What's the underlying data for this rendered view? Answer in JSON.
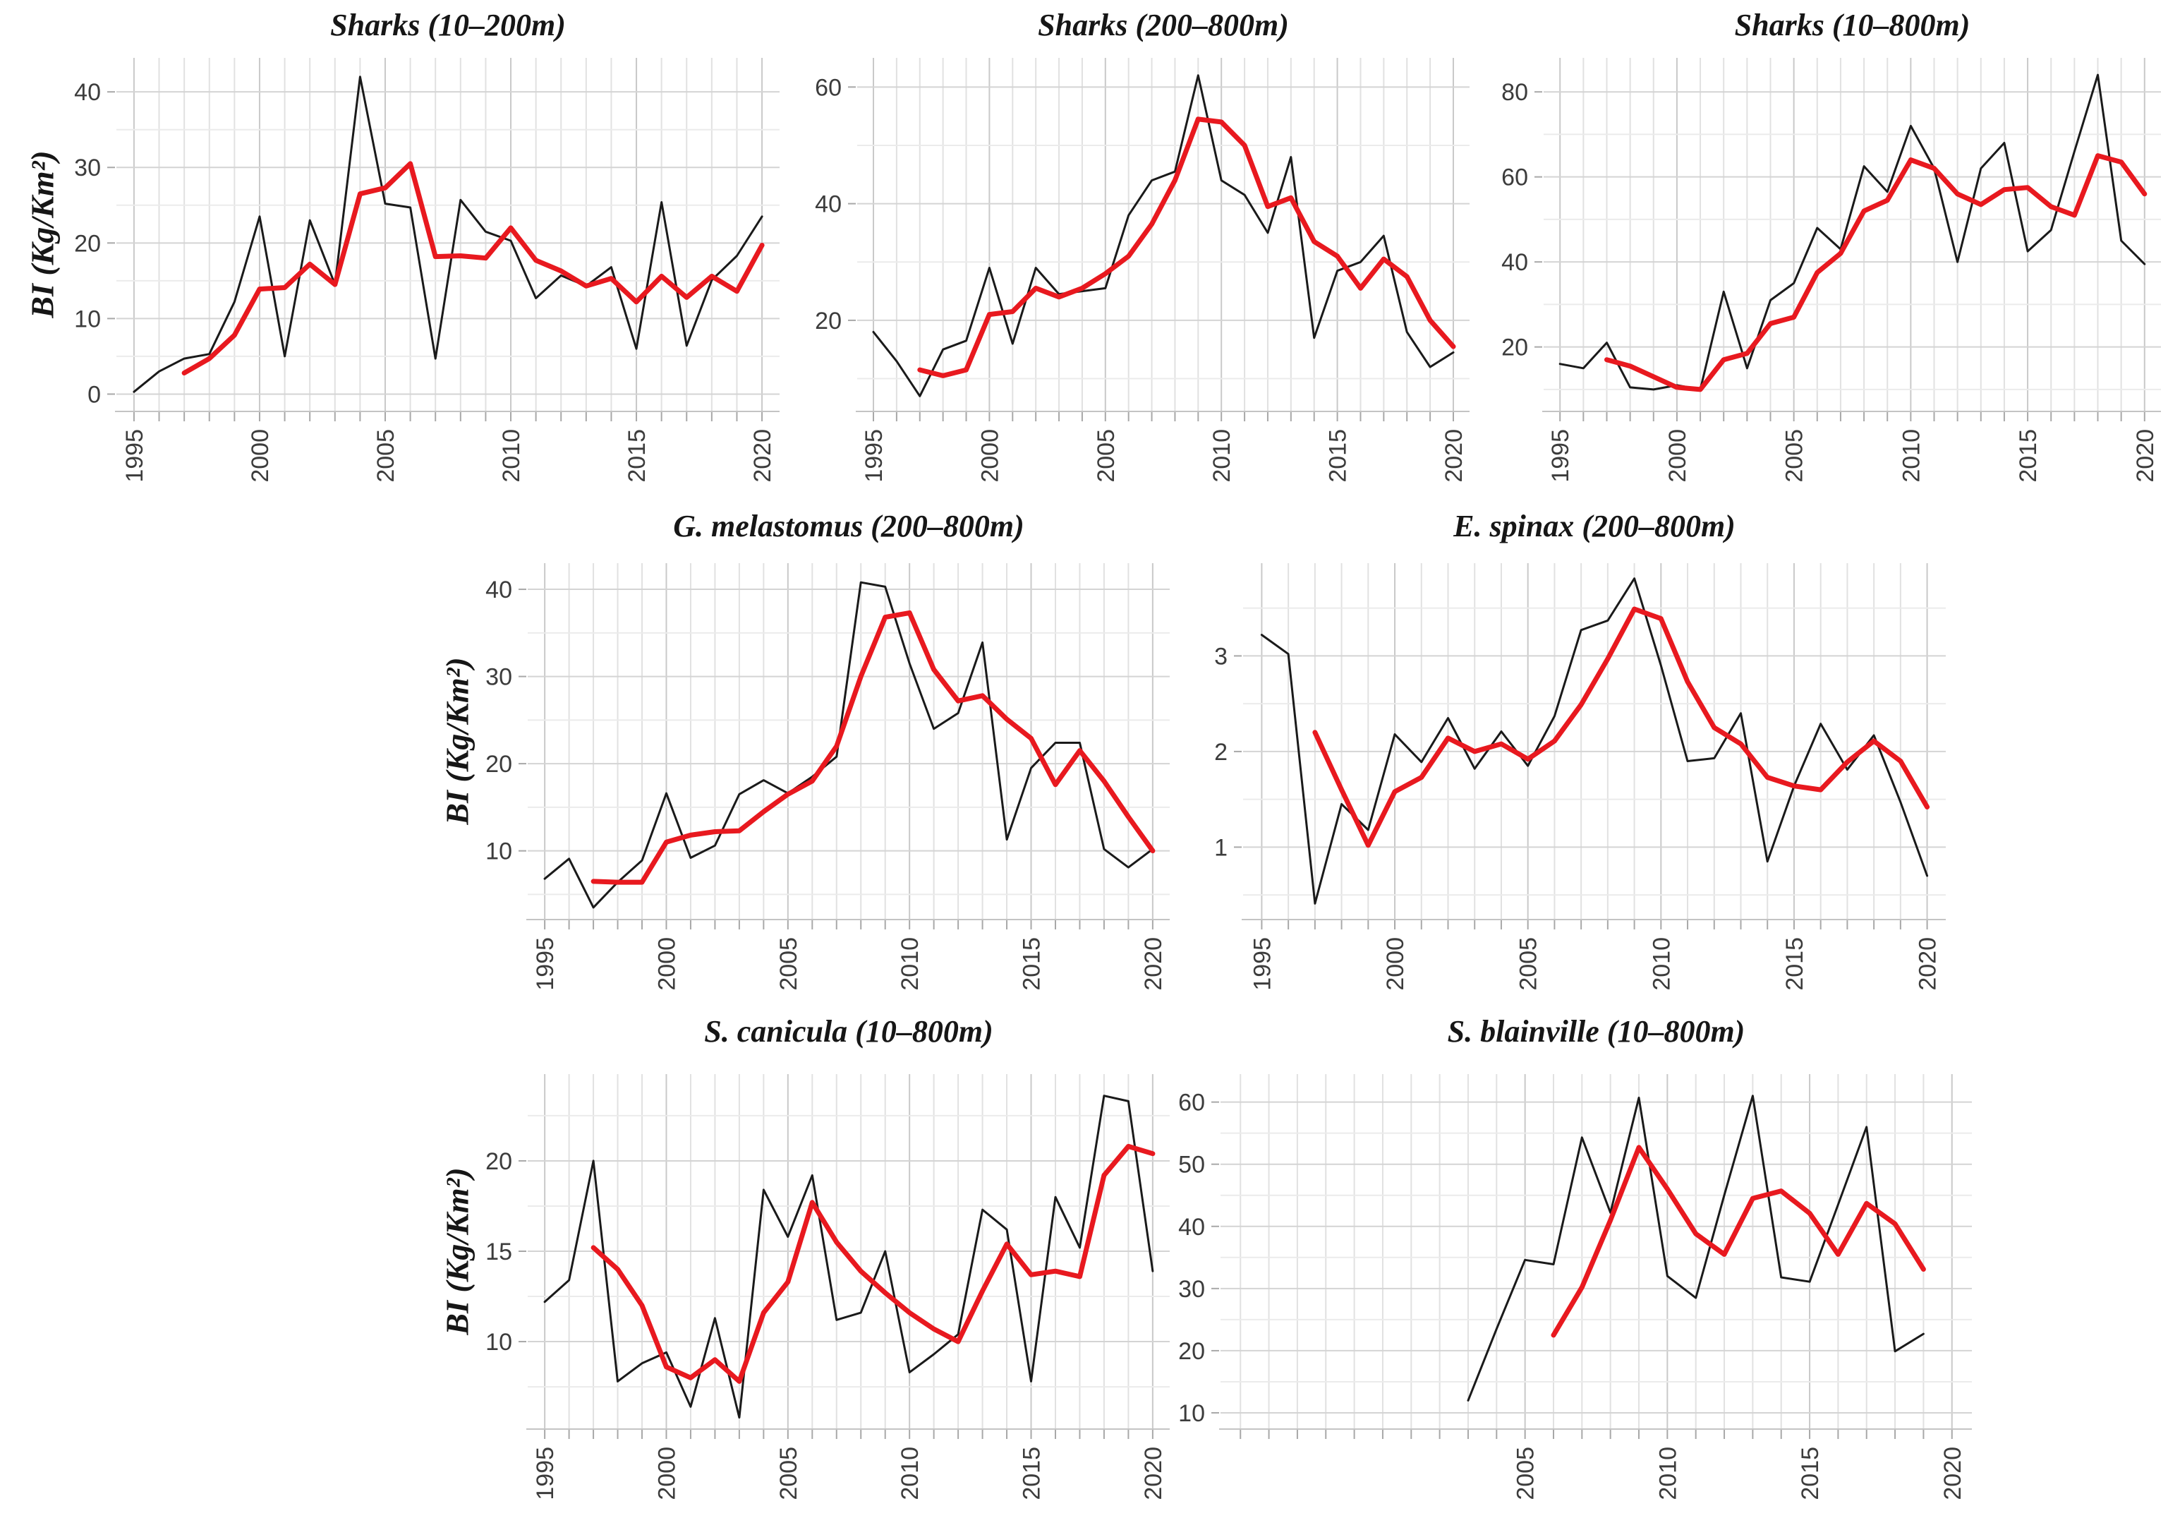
{
  "figure": {
    "background": "#ffffff",
    "ylabel": "BI (Kg/Km²)",
    "black_color": "#1a1a1a",
    "red_color": "#e8191f"
  },
  "chart_data": [
    {
      "type": "line",
      "title": "Sharks (10–200m)",
      "xlabel": "",
      "ylabel": "BI (Kg/Km²)",
      "x_ticks": [
        1995,
        2000,
        2005,
        2010,
        2015,
        2020
      ],
      "y_ticks": [
        0,
        10,
        20,
        30,
        40
      ],
      "y_minor": [
        5,
        15,
        25,
        35
      ],
      "xlim": [
        1994.3,
        2020.7
      ],
      "ylim": [
        -2.2,
        44.5
      ],
      "grid": true,
      "legend": "none",
      "series": [
        {
          "name": "annual-biomass-index",
          "color": "#1a1a1a",
          "width": 3,
          "start_year": 1995,
          "values": [
            0.3,
            3.0,
            4.7,
            5.3,
            12.2,
            23.5,
            5.0,
            23.0,
            14.5,
            42.0,
            25.2,
            24.7,
            4.7,
            25.7,
            21.5,
            20.3,
            12.7,
            15.7,
            14.3,
            16.8,
            6.0,
            25.4,
            6.4,
            15.1,
            18.3,
            23.5
          ]
        },
        {
          "name": "smoothed-trend",
          "color": "#e8191f",
          "width": 7,
          "start_year": 1997,
          "values": [
            2.8,
            4.7,
            7.8,
            13.9,
            14.1,
            17.2,
            14.5,
            26.5,
            27.3,
            30.5,
            18.2,
            18.3,
            18.0,
            22.0,
            17.7,
            16.3,
            14.3,
            15.3,
            12.2,
            15.6,
            12.8,
            15.6,
            13.6,
            19.7
          ]
        }
      ]
    },
    {
      "type": "line",
      "title": "Sharks (200–800m)",
      "xlabel": "",
      "ylabel": "BI (Kg/Km²)",
      "x_ticks": [
        1995,
        2000,
        2005,
        2010,
        2015,
        2020
      ],
      "y_ticks": [
        20,
        40,
        60
      ],
      "y_minor": [
        10,
        30,
        50
      ],
      "xlim": [
        1994.3,
        2020.7
      ],
      "ylim": [
        4.5,
        65
      ],
      "grid": true,
      "legend": "none",
      "series": [
        {
          "name": "annual-biomass-index",
          "color": "#1a1a1a",
          "width": 3,
          "start_year": 1995,
          "values": [
            18,
            13,
            7,
            15,
            16.5,
            29,
            16,
            29,
            24.5,
            25,
            25.5,
            38,
            44,
            45.5,
            62,
            44,
            41.5,
            35,
            48,
            17,
            28.5,
            30,
            34.5,
            18,
            12,
            14.5
          ]
        },
        {
          "name": "smoothed-trend",
          "color": "#e8191f",
          "width": 7,
          "start_year": 1997,
          "values": [
            11.5,
            10.5,
            11.5,
            21,
            21.5,
            25.5,
            24,
            25.5,
            28,
            31,
            36.5,
            44,
            54.5,
            54,
            50,
            39.5,
            41,
            33.5,
            31,
            25.5,
            30.5,
            27.5,
            20,
            15.5
          ]
        }
      ]
    },
    {
      "type": "line",
      "title": "Sharks (10–800m)",
      "xlabel": "",
      "ylabel": "BI (Kg/Km²)",
      "x_ticks": [
        1995,
        2000,
        2005,
        2010,
        2015,
        2020
      ],
      "y_ticks": [
        20,
        40,
        60,
        80
      ],
      "y_minor": [
        10,
        30,
        50,
        70
      ],
      "xlim": [
        1994.3,
        2020.7
      ],
      "ylim": [
        5,
        88
      ],
      "grid": true,
      "legend": "none",
      "series": [
        {
          "name": "annual-biomass-index",
          "color": "#1a1a1a",
          "width": 3,
          "start_year": 1995,
          "values": [
            16,
            15,
            21,
            10.5,
            10,
            11,
            10,
            33,
            15,
            31,
            35,
            48,
            43,
            62.5,
            56.5,
            72,
            62,
            40,
            62,
            68,
            42.5,
            47.5,
            66,
            84,
            45,
            39.5
          ]
        },
        {
          "name": "smoothed-trend",
          "color": "#e8191f",
          "width": 7,
          "start_year": 1997,
          "values": [
            17,
            15.5,
            13,
            10.5,
            10,
            17,
            18.5,
            25.5,
            27,
            37.5,
            42,
            52,
            54.5,
            64,
            62,
            56,
            53.5,
            57,
            57.5,
            53,
            51,
            65,
            63.5,
            56
          ]
        }
      ]
    },
    {
      "type": "line",
      "title": "G. melastomus (200–800m)",
      "xlabel": "",
      "ylabel": "BI (Kg/Km²)",
      "x_ticks": [
        1995,
        2000,
        2005,
        2010,
        2015,
        2020
      ],
      "y_ticks": [
        10,
        20,
        30,
        40
      ],
      "y_minor": [
        5,
        15,
        25,
        35
      ],
      "xlim": [
        1994.3,
        2020.7
      ],
      "ylim": [
        2.2,
        43
      ],
      "grid": true,
      "legend": "none",
      "series": [
        {
          "name": "annual-biomass-index",
          "color": "#1a1a1a",
          "width": 3,
          "start_year": 1995,
          "values": [
            6.8,
            9.1,
            3.5,
            6.4,
            8.9,
            16.6,
            9.2,
            10.6,
            16.5,
            18.1,
            16.6,
            18.5,
            20.8,
            40.8,
            40.3,
            31.5,
            24.0,
            25.8,
            33.9,
            11.3,
            19.5,
            22.4,
            22.4,
            10.2,
            8.1,
            10.2
          ]
        },
        {
          "name": "smoothed-trend",
          "color": "#e8191f",
          "width": 7,
          "start_year": 1997,
          "values": [
            6.5,
            6.4,
            6.4,
            11.0,
            11.8,
            12.2,
            12.3,
            14.5,
            16.5,
            18.0,
            22.0,
            30.0,
            36.8,
            37.3,
            30.8,
            27.2,
            27.8,
            25.1,
            22.9,
            17.6,
            21.5,
            18.0,
            13.9,
            10.0
          ]
        }
      ]
    },
    {
      "type": "line",
      "title": "E. spinax (200–800m)",
      "xlabel": "",
      "ylabel": "BI (Kg/Km²)",
      "x_ticks": [
        1995,
        2000,
        2005,
        2010,
        2015,
        2020
      ],
      "y_ticks": [
        1,
        2,
        3
      ],
      "y_minor": [
        0.5,
        1.5,
        2.5,
        3.5
      ],
      "xlim": [
        1994.3,
        2020.7
      ],
      "ylim": [
        0.25,
        3.97
      ],
      "grid": true,
      "legend": "none",
      "series": [
        {
          "name": "annual-biomass-index",
          "color": "#1a1a1a",
          "width": 3,
          "start_year": 1995,
          "values": [
            3.22,
            3.02,
            0.41,
            1.45,
            1.18,
            2.18,
            1.89,
            2.35,
            1.82,
            2.21,
            1.85,
            2.37,
            3.27,
            3.37,
            3.81,
            2.9,
            1.9,
            1.93,
            2.4,
            0.85,
            1.64,
            2.29,
            1.81,
            2.17,
            1.47,
            0.7
          ]
        },
        {
          "name": "smoothed-trend",
          "color": "#e8191f",
          "width": 7,
          "start_year": 1997,
          "values": [
            2.2,
            1.6,
            1.02,
            1.58,
            1.73,
            2.14,
            2.0,
            2.08,
            1.92,
            2.11,
            2.49,
            2.97,
            3.49,
            3.39,
            2.73,
            2.25,
            2.08,
            1.73,
            1.64,
            1.6,
            1.89,
            2.11,
            1.9,
            1.42
          ]
        }
      ]
    },
    {
      "type": "line",
      "title": "S. canicula (10–800m)",
      "xlabel": "",
      "ylabel": "BI (Kg/Km²)",
      "x_ticks": [
        1995,
        2000,
        2005,
        2010,
        2015,
        2020
      ],
      "y_ticks": [
        10,
        15,
        20
      ],
      "y_minor": [
        7.5,
        12.5,
        17.5,
        22.5
      ],
      "xlim": [
        1994.3,
        2020.7
      ],
      "ylim": [
        5.2,
        24.8
      ],
      "grid": true,
      "legend": "none",
      "series": [
        {
          "name": "annual-biomass-index",
          "color": "#1a1a1a",
          "width": 3,
          "start_year": 1995,
          "values": [
            12.2,
            13.4,
            20.0,
            7.8,
            8.8,
            9.4,
            6.4,
            11.3,
            5.8,
            18.4,
            15.8,
            19.2,
            11.2,
            11.6,
            15.0,
            8.3,
            9.3,
            10.4,
            17.3,
            16.2,
            7.8,
            18.0,
            15.2,
            23.6,
            23.3,
            13.9
          ]
        },
        {
          "name": "smoothed-trend",
          "color": "#e8191f",
          "width": 7,
          "start_year": 1997,
          "values": [
            15.2,
            14.0,
            12.0,
            8.6,
            8.0,
            9.0,
            7.8,
            11.6,
            13.3,
            17.7,
            15.5,
            13.9,
            12.7,
            11.6,
            10.7,
            10.0,
            12.8,
            15.4,
            13.7,
            13.9,
            13.6,
            19.2,
            20.8,
            20.4
          ]
        }
      ]
    },
    {
      "type": "line",
      "title": "S. blainville (10–800m)",
      "xlabel": "",
      "ylabel": "BI (Kg/Km²)",
      "x_ticks": [
        2005,
        2010,
        2015,
        2020
      ],
      "y_ticks": [
        10,
        20,
        30,
        40,
        50,
        60
      ],
      "y_minor": [
        15,
        25,
        35,
        45,
        55
      ],
      "xlim": [
        1994.3,
        2020.7
      ],
      "ylim": [
        7.5,
        64.5
      ],
      "grid": true,
      "legend": "none",
      "series": [
        {
          "name": "annual-biomass-index",
          "color": "#1a1a1a",
          "width": 3,
          "start_year": 2003,
          "values": [
            12.0,
            23.5,
            34.6,
            33.9,
            54.3,
            42.2,
            60.7,
            32.0,
            28.5,
            45.0,
            61.0,
            31.8,
            31.1,
            43.5,
            56.0,
            19.9,
            22.7
          ]
        },
        {
          "name": "smoothed-trend",
          "color": "#e8191f",
          "width": 7,
          "start_year": 2006,
          "values": [
            22.5,
            30.2,
            41.0,
            52.7,
            46.0,
            38.8,
            35.5,
            44.5,
            45.7,
            42.1,
            35.5,
            43.7,
            40.4,
            33.1
          ]
        }
      ]
    }
  ]
}
